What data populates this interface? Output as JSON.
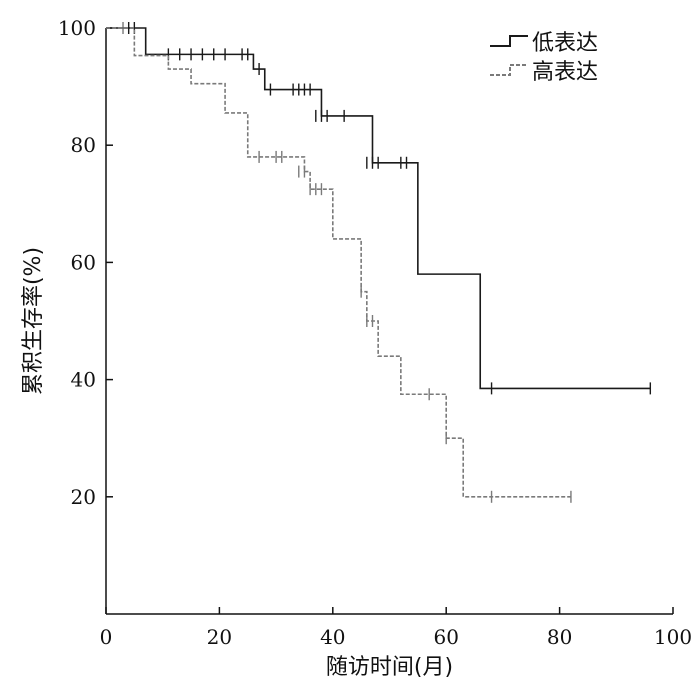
{
  "chart_data": {
    "type": "line",
    "subtype": "kaplan-meier",
    "title": "",
    "xlabel": "随访时间(月)",
    "ylabel": "累积生存率(%)",
    "xlim": [
      0,
      100
    ],
    "ylim": [
      0,
      100
    ],
    "xticks": [
      0,
      20,
      40,
      60,
      80,
      100
    ],
    "yticks": [
      20,
      40,
      60,
      80,
      100
    ],
    "grid": false,
    "legend": "top-right",
    "series": [
      {
        "name": "低表达",
        "color": "#1a1a1a",
        "dash": "solid",
        "steps": [
          [
            0,
            100
          ],
          [
            6,
            100
          ],
          [
            7,
            95.5
          ],
          [
            25,
            95.5
          ],
          [
            26,
            93
          ],
          [
            28,
            89.5
          ],
          [
            37,
            89.5
          ],
          [
            38,
            85
          ],
          [
            46,
            85
          ],
          [
            47,
            77
          ],
          [
            54,
            77
          ],
          [
            55,
            58
          ],
          [
            65,
            58
          ],
          [
            66,
            38.5
          ],
          [
            96,
            38.5
          ]
        ],
        "censored": [
          [
            4,
            100
          ],
          [
            5,
            100
          ],
          [
            11,
            95.5
          ],
          [
            13,
            95.5
          ],
          [
            15,
            95.5
          ],
          [
            17,
            95.5
          ],
          [
            19,
            95.5
          ],
          [
            21,
            95.5
          ],
          [
            24,
            95.5
          ],
          [
            25,
            95.5
          ],
          [
            27,
            93
          ],
          [
            29,
            89.5
          ],
          [
            33,
            89.5
          ],
          [
            34,
            89.5
          ],
          [
            35,
            89.5
          ],
          [
            36,
            89.5
          ],
          [
            37,
            85
          ],
          [
            38,
            85
          ],
          [
            39,
            85
          ],
          [
            42,
            85
          ],
          [
            46,
            77
          ],
          [
            47,
            77
          ],
          [
            48,
            77
          ],
          [
            52,
            77
          ],
          [
            53,
            77
          ],
          [
            68,
            38.5
          ],
          [
            96,
            38.5
          ]
        ]
      },
      {
        "name": "高表达",
        "color": "#7a7a7a",
        "dash": "dashed",
        "steps": [
          [
            0,
            100
          ],
          [
            4,
            100
          ],
          [
            5,
            95.3
          ],
          [
            10,
            95.3
          ],
          [
            11,
            93
          ],
          [
            14,
            93
          ],
          [
            15,
            90.5
          ],
          [
            20,
            90.5
          ],
          [
            21,
            85.5
          ],
          [
            25,
            85.5
          ],
          [
            25,
            78
          ],
          [
            34,
            78
          ],
          [
            35,
            75.5
          ],
          [
            36,
            72.5
          ],
          [
            40,
            72.5
          ],
          [
            40,
            64
          ],
          [
            45,
            64
          ],
          [
            45,
            55
          ],
          [
            46,
            50
          ],
          [
            47,
            50
          ],
          [
            48,
            44
          ],
          [
            52,
            44
          ],
          [
            52,
            37.5
          ],
          [
            60,
            37.5
          ],
          [
            60,
            30
          ],
          [
            63,
            30
          ],
          [
            63,
            20
          ],
          [
            82,
            20
          ]
        ],
        "censored": [
          [
            3,
            100
          ],
          [
            27,
            78
          ],
          [
            30,
            78
          ],
          [
            31,
            78
          ],
          [
            34,
            75.5
          ],
          [
            35,
            75.5
          ],
          [
            36,
            72.5
          ],
          [
            37,
            72.5
          ],
          [
            38,
            72.5
          ],
          [
            45,
            55
          ],
          [
            46,
            50
          ],
          [
            47,
            50
          ],
          [
            57,
            37.5
          ],
          [
            60,
            30
          ],
          [
            68,
            20
          ],
          [
            82,
            20
          ]
        ]
      }
    ]
  }
}
